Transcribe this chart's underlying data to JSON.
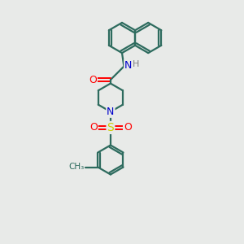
{
  "bg_color": "#e8eae8",
  "bond_color": "#2d6b5e",
  "bond_width": 1.6,
  "atom_colors": {
    "O": "#ff0000",
    "N": "#0000cc",
    "S": "#cccc00",
    "H": "#808080",
    "C": "#2d6b5e"
  },
  "fig_size": [
    3.0,
    3.0
  ],
  "dpi": 100
}
